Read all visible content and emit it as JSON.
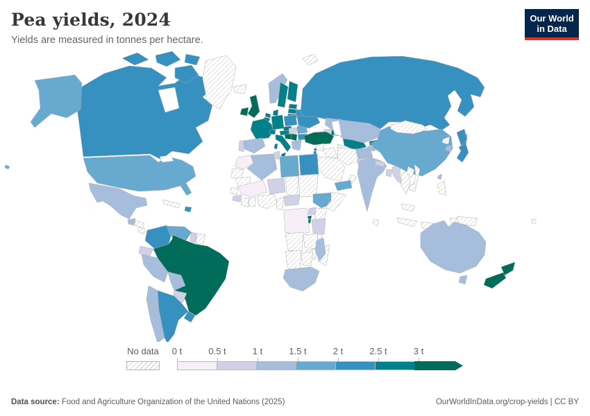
{
  "header": {
    "title": "Pea yields, 2024",
    "subtitle": "Yields are measured in tonnes per hectare.",
    "logo": {
      "line1": "Our World",
      "line2": "in Data",
      "bg_color": "#04264c",
      "accent_color": "#d8352a"
    }
  },
  "footer": {
    "source_label": "Data source:",
    "source_text": " Food and Agriculture Organization of the United Nations (2025)",
    "right_text": "OurWorldInData.org/crop-yields | CC BY"
  },
  "chart_data": {
    "type": "choropleth_map",
    "title": "Pea yields, 2024",
    "unit": "tonnes per hectare",
    "year": 2024,
    "legend": {
      "no_data_label": "No data",
      "tick_labels": [
        "0 t",
        "0.5 t",
        "1 t",
        "1.5 t",
        "2 t",
        "2.5 t",
        "3 t"
      ],
      "bin_ranges": [
        "0–0.5 t",
        "0.5–1 t",
        "1–1.5 t",
        "1.5–2 t",
        "2–2.5 t",
        "2.5–3 t",
        "3+ t"
      ],
      "bin_colors": [
        "#f6eff7",
        "#d0d1e6",
        "#a6bddb",
        "#67a9cf",
        "#3690c0",
        "#02818a",
        "#016c59"
      ],
      "open_ended": true,
      "border_color": "#b9b9b9"
    },
    "map_style": {
      "country_border_color": "#aeaeae",
      "ocean_color": "#ffffff",
      "no_data_pattern": "diagonal-hatch"
    },
    "countries": [
      {
        "id": "can",
        "name": "Canada",
        "bin": 4
      },
      {
        "id": "usa",
        "name": "United States",
        "bin": 3
      },
      {
        "id": "grl",
        "name": "Greenland",
        "bin": -1
      },
      {
        "id": "mex",
        "name": "Mexico",
        "bin": 2
      },
      {
        "id": "gtm",
        "name": "Guatemala",
        "bin": 2
      },
      {
        "id": "hnd",
        "name": "Honduras",
        "bin": -1
      },
      {
        "id": "nic",
        "name": "Nicaragua",
        "bin": -1
      },
      {
        "id": "pan",
        "name": "Panama",
        "bin": -1
      },
      {
        "id": "cub",
        "name": "Cuba",
        "bin": -1
      },
      {
        "id": "dom",
        "name": "Dominican Republic",
        "bin": 4
      },
      {
        "id": "col",
        "name": "Colombia",
        "bin": 4
      },
      {
        "id": "ven",
        "name": "Venezuela",
        "bin": 3
      },
      {
        "id": "guy",
        "name": "Guyana",
        "bin": 1
      },
      {
        "id": "sur",
        "name": "Suriname",
        "bin": -1
      },
      {
        "id": "ecu",
        "name": "Ecuador",
        "bin": 1
      },
      {
        "id": "per",
        "name": "Peru",
        "bin": 2
      },
      {
        "id": "bra",
        "name": "Brazil",
        "bin": 6
      },
      {
        "id": "bol",
        "name": "Bolivia",
        "bin": 2
      },
      {
        "id": "pry",
        "name": "Paraguay",
        "bin": 1
      },
      {
        "id": "chl",
        "name": "Chile",
        "bin": 2
      },
      {
        "id": "arg",
        "name": "Argentina",
        "bin": 4
      },
      {
        "id": "ury",
        "name": "Uruguay",
        "bin": 4
      },
      {
        "id": "isl",
        "name": "Iceland",
        "bin": -1
      },
      {
        "id": "irl",
        "name": "Ireland",
        "bin": 6
      },
      {
        "id": "gbr",
        "name": "United Kingdom",
        "bin": 6
      },
      {
        "id": "prt",
        "name": "Portugal",
        "bin": 1
      },
      {
        "id": "esp",
        "name": "Spain",
        "bin": 2
      },
      {
        "id": "fra",
        "name": "France",
        "bin": 5
      },
      {
        "id": "bel",
        "name": "Belgium",
        "bin": 5
      },
      {
        "id": "nld",
        "name": "Netherlands",
        "bin": 5
      },
      {
        "id": "deu",
        "name": "Germany",
        "bin": 5
      },
      {
        "id": "dnk",
        "name": "Denmark",
        "bin": 5
      },
      {
        "id": "nor",
        "name": "Norway",
        "bin": 2
      },
      {
        "id": "swe",
        "name": "Sweden",
        "bin": 5
      },
      {
        "id": "fin",
        "name": "Finland",
        "bin": 5
      },
      {
        "id": "est",
        "name": "Estonia",
        "bin": 5
      },
      {
        "id": "lva",
        "name": "Latvia",
        "bin": 5
      },
      {
        "id": "ltu",
        "name": "Lithuania",
        "bin": 4
      },
      {
        "id": "pol",
        "name": "Poland",
        "bin": 4
      },
      {
        "id": "cze",
        "name": "Czechia",
        "bin": 5
      },
      {
        "id": "aut",
        "name": "Austria",
        "bin": 5
      },
      {
        "id": "che",
        "name": "Switzerland",
        "bin": 5
      },
      {
        "id": "ita",
        "name": "Italy",
        "bin": 5
      },
      {
        "id": "hun",
        "name": "Hungary",
        "bin": 1
      },
      {
        "id": "hrv",
        "name": "Croatia",
        "bin": 6
      },
      {
        "id": "srb",
        "name": "Serbia",
        "bin": 6
      },
      {
        "id": "rou",
        "name": "Romania",
        "bin": 3
      },
      {
        "id": "bgr",
        "name": "Bulgaria",
        "bin": 4
      },
      {
        "id": "grc",
        "name": "Greece",
        "bin": 2
      },
      {
        "id": "ukr",
        "name": "Ukraine",
        "bin": 4
      },
      {
        "id": "blr",
        "name": "Belarus",
        "bin": 4
      },
      {
        "id": "rus",
        "name": "Russia",
        "bin": 4
      },
      {
        "id": "svb",
        "name": "Svalbard",
        "bin": -1
      },
      {
        "id": "kaz",
        "name": "Kazakhstan",
        "bin": 2
      },
      {
        "id": "uzb",
        "name": "Uzbekistan",
        "bin": 5
      },
      {
        "id": "tkm",
        "name": "Turkmenistan",
        "bin": 0
      },
      {
        "id": "kgz",
        "name": "Kyrgyzstan",
        "bin": 5
      },
      {
        "id": "tjk",
        "name": "Tajikistan",
        "bin": 2
      },
      {
        "id": "geo",
        "name": "Georgia",
        "bin": 1
      },
      {
        "id": "aze",
        "name": "Azerbaijan",
        "bin": 5
      },
      {
        "id": "arm",
        "name": "Armenia",
        "bin": 1
      },
      {
        "id": "tur",
        "name": "Turkey",
        "bin": 6
      },
      {
        "id": "syr",
        "name": "Syria",
        "bin": -1
      },
      {
        "id": "irq",
        "name": "Iraq",
        "bin": -1
      },
      {
        "id": "irn",
        "name": "Iran",
        "bin": -1
      },
      {
        "id": "sau",
        "name": "Saudi Arabia",
        "bin": -1
      },
      {
        "id": "omn",
        "name": "Oman",
        "bin": -1
      },
      {
        "id": "isr",
        "name": "Israel",
        "bin": 4
      },
      {
        "id": "lbn",
        "name": "Lebanon",
        "bin": 5
      },
      {
        "id": "yem",
        "name": "Yemen",
        "bin": 3
      },
      {
        "id": "afg",
        "name": "Afghanistan",
        "bin": 2
      },
      {
        "id": "pak",
        "name": "Pakistan",
        "bin": 1
      },
      {
        "id": "ind",
        "name": "India",
        "bin": 2
      },
      {
        "id": "npl",
        "name": "Nepal",
        "bin": 1
      },
      {
        "id": "bgd",
        "name": "Bangladesh",
        "bin": 1
      },
      {
        "id": "mmr",
        "name": "Myanmar",
        "bin": 1
      },
      {
        "id": "lka",
        "name": "Sri Lanka",
        "bin": -1
      },
      {
        "id": "chn",
        "name": "China",
        "bin": 3
      },
      {
        "id": "mng",
        "name": "Mongolia",
        "bin": -1
      },
      {
        "id": "prk",
        "name": "North Korea",
        "bin": -1
      },
      {
        "id": "kor",
        "name": "South Korea",
        "bin": 2
      },
      {
        "id": "jpn",
        "name": "Japan",
        "bin": 4
      },
      {
        "id": "twn",
        "name": "Taiwan",
        "bin": 2
      },
      {
        "id": "tha",
        "name": "Thailand",
        "bin": -1
      },
      {
        "id": "lao",
        "name": "Laos",
        "bin": -1
      },
      {
        "id": "vnm",
        "name": "Vietnam",
        "bin": -1
      },
      {
        "id": "khm",
        "name": "Cambodia",
        "bin": -1
      },
      {
        "id": "mys",
        "name": "Malaysia",
        "bin": -1
      },
      {
        "id": "phl",
        "name": "Philippines",
        "bin": -1
      },
      {
        "id": "idn",
        "name": "Indonesia",
        "bin": -1
      },
      {
        "id": "png",
        "name": "Papua New Guinea",
        "bin": -1
      },
      {
        "id": "fji",
        "name": "Fiji",
        "bin": -1
      },
      {
        "id": "mar",
        "name": "Morocco",
        "bin": 0
      },
      {
        "id": "dza",
        "name": "Algeria",
        "bin": 2
      },
      {
        "id": "tun",
        "name": "Tunisia",
        "bin": 1
      },
      {
        "id": "lby",
        "name": "Libya",
        "bin": 3
      },
      {
        "id": "egy",
        "name": "Egypt",
        "bin": 4
      },
      {
        "id": "esh",
        "name": "Western Sahara",
        "bin": -1
      },
      {
        "id": "mrt",
        "name": "Mauritania",
        "bin": -1
      },
      {
        "id": "mli",
        "name": "Mali",
        "bin": 0
      },
      {
        "id": "sen",
        "name": "Senegal",
        "bin": -1
      },
      {
        "id": "gin",
        "name": "Guinea",
        "bin": 1
      },
      {
        "id": "civ",
        "name": "Côte d'Ivoire",
        "bin": -1
      },
      {
        "id": "gha",
        "name": "Ghana",
        "bin": -1
      },
      {
        "id": "nga",
        "name": "Nigeria",
        "bin": -1
      },
      {
        "id": "cmr",
        "name": "Cameroon",
        "bin": -1
      },
      {
        "id": "caf",
        "name": "Central African Republic",
        "bin": 1
      },
      {
        "id": "eth",
        "name": "Ethiopia",
        "bin": 3
      },
      {
        "id": "som",
        "name": "Somalia",
        "bin": -1
      },
      {
        "id": "ken",
        "name": "Kenya",
        "bin": -1
      },
      {
        "id": "uga",
        "name": "Uganda",
        "bin": 1
      },
      {
        "id": "rwa",
        "name": "Rwanda",
        "bin": 6
      },
      {
        "id": "bdi",
        "name": "Burundi",
        "bin": 6
      },
      {
        "id": "cod",
        "name": "Democratic Republic of Congo",
        "bin": 0
      },
      {
        "id": "tza",
        "name": "Tanzania",
        "bin": 1
      },
      {
        "id": "ago",
        "name": "Angola",
        "bin": -1
      },
      {
        "id": "zmb",
        "name": "Zambia",
        "bin": -1
      },
      {
        "id": "mwi",
        "name": "Malawi",
        "bin": -1
      },
      {
        "id": "moz",
        "name": "Mozambique",
        "bin": -1
      },
      {
        "id": "zwe",
        "name": "Zimbabwe",
        "bin": -1
      },
      {
        "id": "nam",
        "name": "Namibia",
        "bin": -1
      },
      {
        "id": "bwa",
        "name": "Botswana",
        "bin": -1
      },
      {
        "id": "zaf",
        "name": "South Africa",
        "bin": 2
      },
      {
        "id": "mdg",
        "name": "Madagascar",
        "bin": 2
      },
      {
        "id": "aus",
        "name": "Australia",
        "bin": 2
      },
      {
        "id": "nzl",
        "name": "New Zealand",
        "bin": 6
      }
    ]
  }
}
